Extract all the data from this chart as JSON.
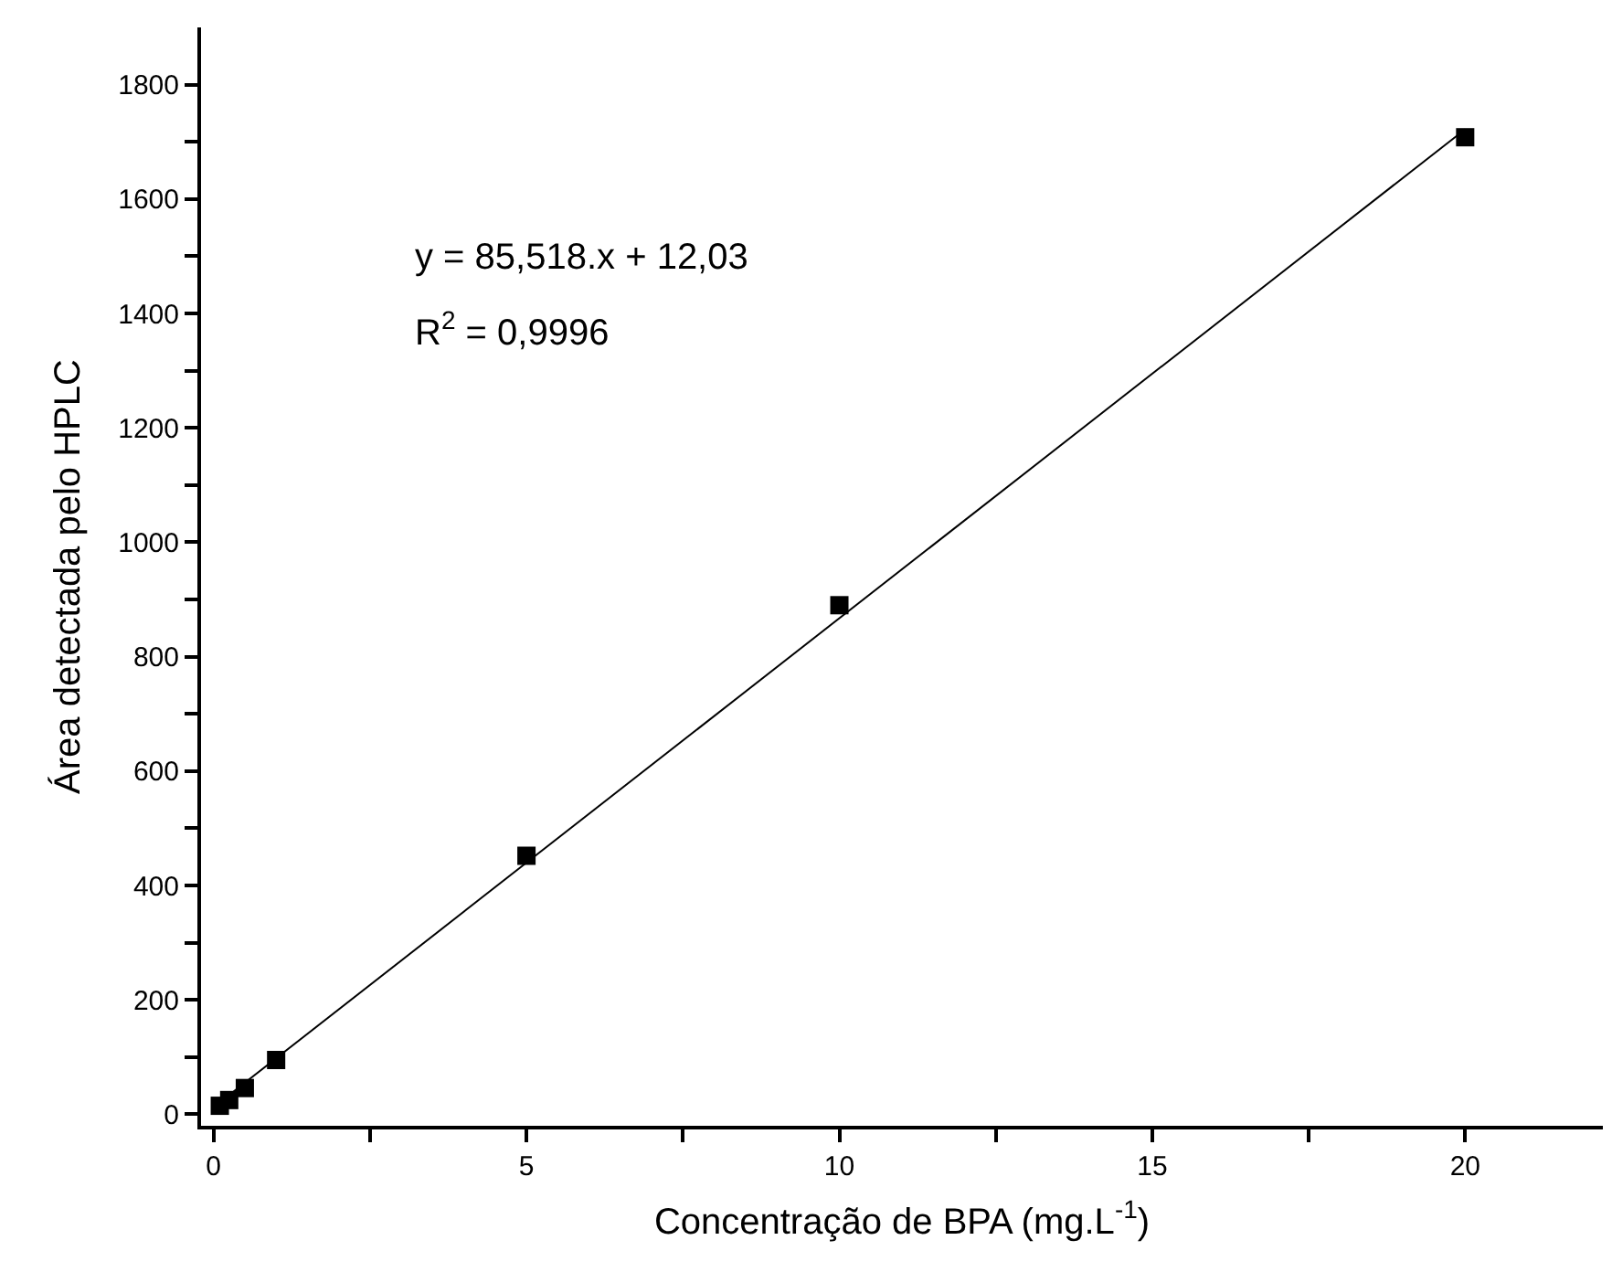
{
  "chart_data": {
    "type": "scatter",
    "xlabel": "Concentração de BPA (mg.L$^{-1}$)",
    "ylabel": "Área detectada pelo HPLC",
    "annotations": [
      "y = 85,518.x + 12,03",
      "R$^{2}$ = 0,9996"
    ],
    "series": [
      {
        "color": "#000000",
        "marker": "square",
        "x": [
          0.1,
          0.25,
          0.5,
          1,
          5,
          10,
          20
        ],
        "values": [
          15,
          25,
          46,
          95,
          452,
          890,
          1708
        ]
      },
      {
        "type": "line",
        "color": "#000000",
        "line_style": "solid",
        "marker": "none",
        "x": [
          0.1,
          20
        ],
        "values": [
          21,
          1722
        ]
      }
    ],
    "xlim": [
      -0.2,
      22.2
    ],
    "ylim": [
      -20,
      1900
    ],
    "xticks": [
      0,
      {
        "value": 2.5,
        "label": null
      },
      5,
      {
        "value": 7.5,
        "label": null
      },
      10,
      {
        "value": 12.5,
        "label": null
      },
      15,
      {
        "value": 17.5,
        "label": null
      },
      20
    ],
    "yticks": [
      0,
      {
        "value": 100,
        "label": null
      },
      200,
      {
        "value": 300,
        "label": null
      },
      400,
      {
        "value": 500,
        "label": null
      },
      600,
      {
        "value": 700,
        "label": null
      },
      800,
      {
        "value": 900,
        "label": null
      },
      1000,
      {
        "value": 1100,
        "label": null
      },
      1200,
      {
        "value": 1300,
        "label": null
      },
      1400,
      {
        "value": 1500,
        "label": null
      },
      1600,
      {
        "value": 1700,
        "label": null
      },
      1800
    ]
  }
}
